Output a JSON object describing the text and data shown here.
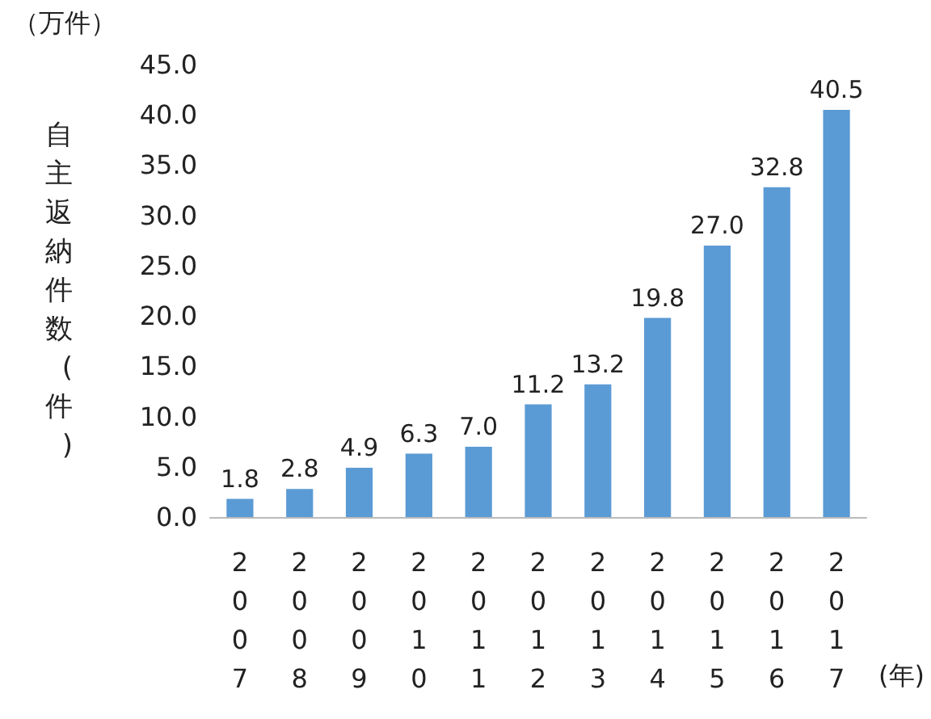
{
  "chart_data": {
    "type": "bar",
    "ylabel": "自主返納件数(件)",
    "xlabel": "(年)",
    "annotations": [
      "（万件）"
    ],
    "categories": [
      "2007",
      "2008",
      "2009",
      "2010",
      "2011",
      "2012",
      "2013",
      "2014",
      "2015",
      "2016",
      "2017"
    ],
    "values": [
      1.8,
      2.8,
      4.9,
      6.3,
      7.0,
      11.2,
      13.2,
      19.8,
      27.0,
      32.8,
      40.5
    ],
    "value_labels": [
      "1.8",
      "2.8",
      "4.9",
      "6.3",
      "7.0",
      "11.2",
      "13.2",
      "19.8",
      "27.0",
      "32.8",
      "40.5"
    ],
    "color": "#5b9bd5",
    "ylim": [
      0,
      45
    ],
    "yticks": [
      {
        "value": 0,
        "label": "0.0"
      },
      {
        "value": 5,
        "label": "5.0"
      },
      {
        "value": 10,
        "label": "10.0"
      },
      {
        "value": 15,
        "label": "15.0"
      },
      {
        "value": 20,
        "label": "20.0"
      },
      {
        "value": 25,
        "label": "25.0"
      },
      {
        "value": 30,
        "label": "30.0"
      },
      {
        "value": 35,
        "label": "35.0"
      },
      {
        "value": 40,
        "label": "40.0"
      },
      {
        "value": 45,
        "label": "45.0"
      }
    ],
    "grid": false
  }
}
